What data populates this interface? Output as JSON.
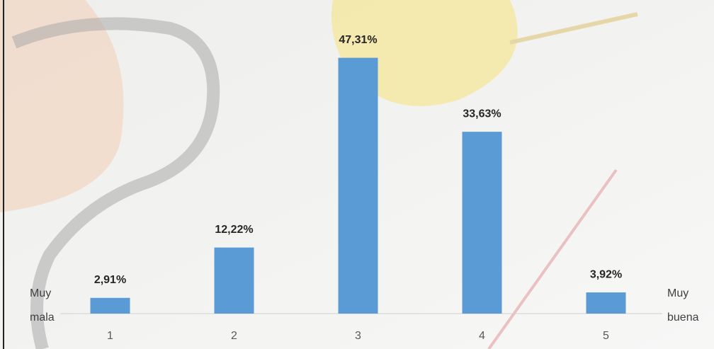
{
  "chart_data": {
    "type": "bar",
    "categories": [
      "1",
      "2",
      "3",
      "4",
      "5"
    ],
    "values": [
      2.91,
      12.22,
      47.31,
      33.63,
      3.92
    ],
    "value_labels": [
      "2,91%",
      "12,22%",
      "47,31%",
      "33,63%",
      "3,92%"
    ],
    "color": "#5b9bd5",
    "ylim": [
      0,
      58
    ],
    "annotations": [
      "Muy mala",
      "Muy buena"
    ]
  }
}
